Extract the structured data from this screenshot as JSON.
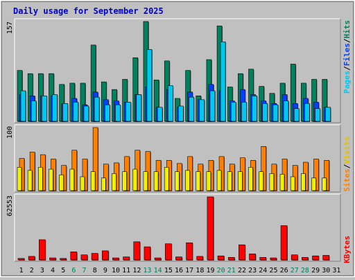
{
  "title": "Daily usage for September 2025",
  "colors": {
    "background": "#c0c0c0",
    "plot_bg": "#c0c0c0",
    "title": "#0000cc",
    "hits": "#00805c",
    "files": "#0040ff",
    "pages": "#00c8f0",
    "visits": "#f0f000",
    "sites": "#ff8000",
    "kbytes": "#ff0000",
    "weekend_label": "#00805c"
  },
  "legend": {
    "top": [
      {
        "text": "Pages",
        "color": "#00c8f0"
      },
      {
        "text": "/",
        "color": "#000000"
      },
      {
        "text": "Files",
        "color": "#0040ff"
      },
      {
        "text": "/",
        "color": "#000000"
      },
      {
        "text": "Hits",
        "color": "#00805c"
      }
    ],
    "mid": [
      {
        "text": "Sites",
        "color": "#ff8000"
      },
      {
        "text": "/",
        "color": "#000000"
      },
      {
        "text": "Visits",
        "color": "#e0c000"
      }
    ],
    "bottom": [
      {
        "text": "KBytes",
        "color": "#ff0000"
      }
    ]
  },
  "chart_data": [
    {
      "type": "bar",
      "name": "hits-files-pages",
      "ymax_label": "157",
      "ylim": [
        0,
        157
      ],
      "categories": [
        "1",
        "2",
        "3",
        "4",
        "5",
        "6",
        "7",
        "8",
        "9",
        "10",
        "11",
        "12",
        "13",
        "14",
        "15",
        "16",
        "17",
        "18",
        "19",
        "20",
        "21",
        "22",
        "23",
        "24",
        "25",
        "26",
        "27",
        "28",
        "29",
        "30",
        "31"
      ],
      "weekend_days": [
        6,
        7,
        13,
        14,
        20,
        21,
        27,
        28
      ],
      "series": [
        {
          "name": "Hits",
          "values": [
            80,
            75,
            75,
            75,
            58,
            60,
            60,
            120,
            62,
            50,
            66,
            100,
            157,
            65,
            95,
            36,
            80,
            40,
            97,
            150,
            54,
            75,
            82,
            55,
            44,
            60,
            90,
            60,
            66,
            66,
            0
          ]
        },
        {
          "name": "Files",
          "values": [
            42,
            40,
            40,
            40,
            28,
            36,
            26,
            46,
            34,
            32,
            30,
            42,
            54,
            22,
            50,
            22,
            46,
            34,
            58,
            48,
            32,
            50,
            42,
            32,
            28,
            42,
            28,
            36,
            30,
            22,
            0
          ]
        },
        {
          "name": "Pages",
          "values": [
            48,
            32,
            40,
            42,
            28,
            30,
            24,
            38,
            26,
            26,
            30,
            42,
            113,
            22,
            56,
            24,
            38,
            34,
            48,
            125,
            30,
            30,
            40,
            28,
            26,
            32,
            20,
            28,
            20,
            22,
            0
          ]
        }
      ]
    },
    {
      "type": "bar",
      "name": "visits-sites",
      "ymax_label": "100",
      "ylim": [
        0,
        100
      ],
      "categories": [
        "1",
        "2",
        "3",
        "4",
        "5",
        "6",
        "7",
        "8",
        "9",
        "10",
        "11",
        "12",
        "13",
        "14",
        "15",
        "16",
        "17",
        "18",
        "19",
        "20",
        "21",
        "22",
        "23",
        "24",
        "25",
        "26",
        "27",
        "28",
        "29",
        "30",
        "31"
      ],
      "series": [
        {
          "name": "Visits",
          "values": [
            37,
            32,
            37,
            34,
            25,
            34,
            22,
            30,
            20,
            27,
            30,
            34,
            30,
            30,
            37,
            30,
            32,
            30,
            30,
            32,
            30,
            30,
            37,
            30,
            27,
            26,
            22,
            27,
            20,
            20,
            0
          ]
        },
        {
          "name": "Sites",
          "values": [
            51,
            61,
            57,
            50,
            40,
            64,
            50,
            100,
            42,
            44,
            54,
            64,
            62,
            48,
            48,
            43,
            54,
            42,
            48,
            54,
            42,
            52,
            48,
            70,
            42,
            50,
            40,
            45,
            50,
            48,
            0
          ]
        }
      ]
    },
    {
      "type": "bar",
      "name": "kbytes",
      "ymax_label": "62553",
      "ylim": [
        0,
        62553
      ],
      "categories": [
        "1",
        "2",
        "3",
        "4",
        "5",
        "6",
        "7",
        "8",
        "9",
        "10",
        "11",
        "12",
        "13",
        "14",
        "15",
        "16",
        "17",
        "18",
        "19",
        "20",
        "21",
        "22",
        "23",
        "24",
        "25",
        "26",
        "27",
        "28",
        "29",
        "30",
        "31"
      ],
      "series": [
        {
          "name": "KBytes",
          "values": [
            1500,
            3500,
            20000,
            2000,
            1500,
            8000,
            5000,
            6500,
            9000,
            2000,
            3000,
            18000,
            13000,
            2000,
            16000,
            3000,
            17000,
            3500,
            62553,
            4000,
            2500,
            15000,
            6000,
            2500,
            2000,
            34000,
            5000,
            2500,
            4000,
            4500,
            0
          ]
        }
      ]
    }
  ]
}
